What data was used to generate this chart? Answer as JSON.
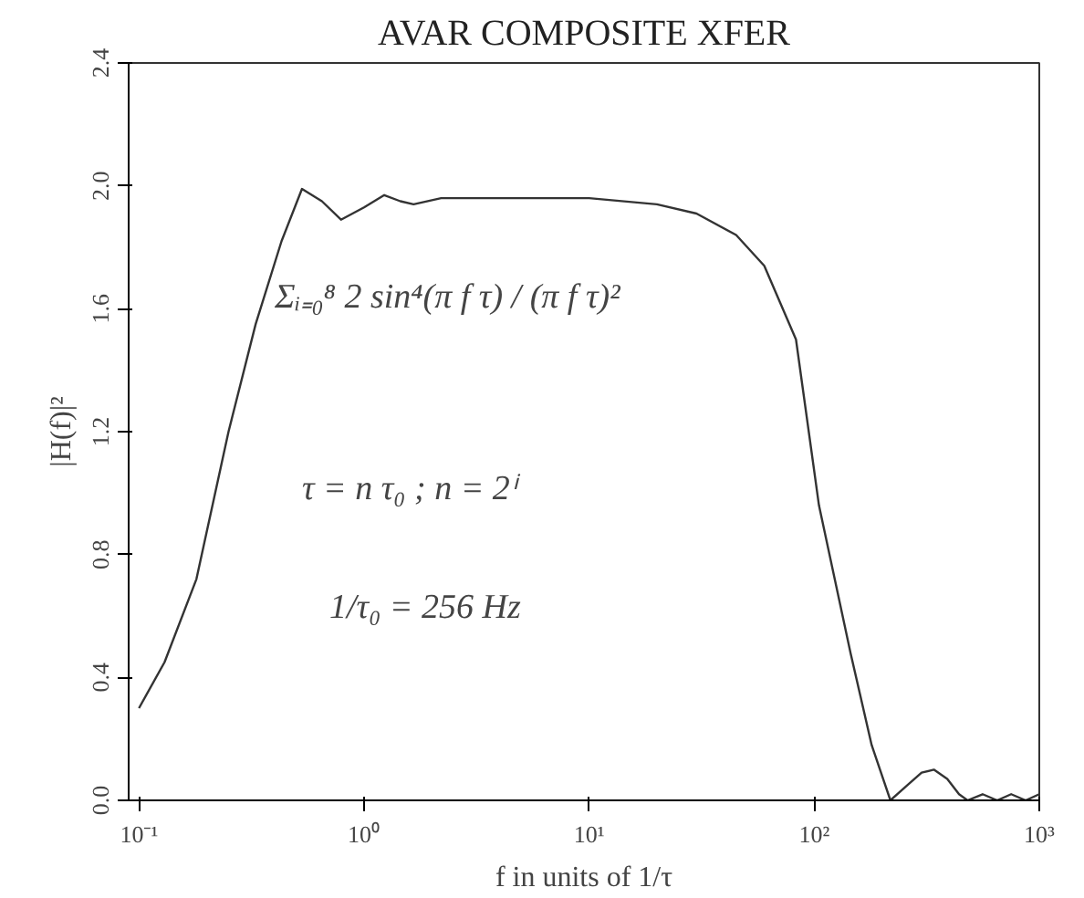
{
  "chart_data": {
    "type": "line",
    "title": "AVAR COMPOSITE XFER",
    "xlabel": "f in units of 1/τ",
    "ylabel": "|H(f)|²",
    "log": "x",
    "grid": false,
    "marker": "none",
    "line_style": "solid",
    "xlim": [
      0.09,
      1000
    ],
    "ylim": [
      0,
      2.4
    ],
    "xticks": [
      {
        "value": 0.1,
        "label": "10⁻¹"
      },
      {
        "value": 1,
        "label": "10⁰"
      },
      {
        "value": 10,
        "label": "10¹"
      },
      {
        "value": 100,
        "label": "10²"
      },
      {
        "value": 1000,
        "label": "10³"
      }
    ],
    "yticks": [
      {
        "value": 0,
        "label": "0.0"
      },
      {
        "value": 0.4,
        "label": "0.4"
      },
      {
        "value": 0.8,
        "label": "0.8"
      },
      {
        "value": 1.2,
        "label": "1.2"
      },
      {
        "value": 1.6,
        "label": "1.6"
      },
      {
        "value": 2.0,
        "label": "2.0"
      },
      {
        "value": 2.4,
        "label": "2.4"
      }
    ],
    "series": [
      {
        "color": "#333333",
        "x": [
          0.1,
          0.13,
          0.18,
          0.25,
          0.33,
          0.43,
          0.53,
          0.65,
          0.79,
          1.0,
          1.23,
          1.45,
          1.66,
          2.2,
          3,
          5,
          10,
          20,
          30,
          45,
          60,
          83,
          105,
          145,
          180,
          218,
          260,
          300,
          340,
          390,
          440,
          480,
          560,
          650,
          750,
          870,
          1000
        ],
        "values": [
          0.3,
          0.45,
          0.72,
          1.2,
          1.55,
          1.82,
          1.99,
          1.95,
          1.89,
          1.93,
          1.97,
          1.95,
          1.94,
          1.96,
          1.96,
          1.96,
          1.96,
          1.94,
          1.91,
          1.84,
          1.74,
          1.5,
          0.96,
          0.48,
          0.18,
          0,
          0.05,
          0.09,
          0.1,
          0.07,
          0.02,
          0,
          0.02,
          0,
          0.02,
          0,
          0.02
        ]
      }
    ],
    "annotations": [
      "Σᵢ₌₀⁸  2 sin⁴(π f τ) / (π f τ)²",
      "τ = n τ₀ ;  n = 2ⁱ",
      "1/τ₀ = 256 Hz"
    ]
  }
}
